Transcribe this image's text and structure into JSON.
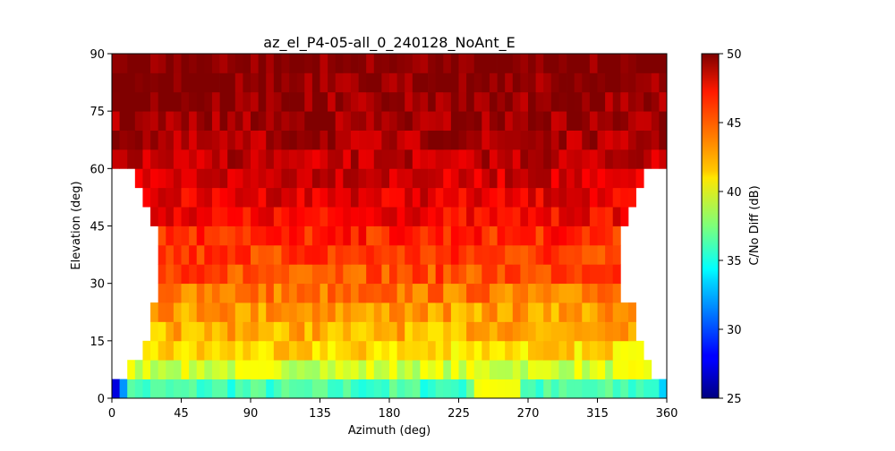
{
  "chart_data": {
    "type": "heatmap",
    "title": "az_el_P4-05-all_0_240128_NoAnt_E",
    "xlabel": "Azimuth (deg)",
    "ylabel": "Elevation (deg)",
    "xlim": [
      0,
      360
    ],
    "ylim": [
      0,
      90
    ],
    "xticks": [
      "0",
      "45",
      "90",
      "135",
      "180",
      "225",
      "270",
      "315",
      "360"
    ],
    "yticks": [
      "0",
      "15",
      "30",
      "45",
      "60",
      "75",
      "90"
    ],
    "bin_az_deg": 5,
    "bin_el_deg": 5,
    "colormap": "jet",
    "colorbar": {
      "label": "C/No Diff (dB)",
      "range": [
        25,
        50
      ],
      "ticks": [
        "25",
        "30",
        "35",
        "40",
        "45",
        "50"
      ]
    },
    "rows": [
      {
        "el": [
          0,
          5
        ],
        "az": [
          0,
          360
        ],
        "approx": 36,
        "notes": "az 0-5: 27 (blue); az 5-10: 32 (light blue); az 235-265: 40-41 (yellow-green); az 355-360: 33 (light blue)"
      },
      {
        "el": [
          5,
          10
        ],
        "az": [
          10,
          350
        ],
        "approx": 39.5
      },
      {
        "el": [
          10,
          15
        ],
        "az": [
          20,
          345
        ],
        "approx": 41.5
      },
      {
        "el": [
          15,
          20
        ],
        "az": [
          25,
          340
        ],
        "approx": 42.5
      },
      {
        "el": [
          20,
          25
        ],
        "az": [
          25,
          340
        ],
        "approx": 43
      },
      {
        "el": [
          25,
          30
        ],
        "az": [
          30,
          330
        ],
        "approx": 44
      },
      {
        "el": [
          30,
          35
        ],
        "az": [
          30,
          330
        ],
        "approx": 45
      },
      {
        "el": [
          35,
          40
        ],
        "az": [
          30,
          330
        ],
        "approx": 45.5
      },
      {
        "el": [
          40,
          45
        ],
        "az": [
          30,
          330
        ],
        "approx": 46
      },
      {
        "el": [
          45,
          50
        ],
        "az": [
          25,
          335
        ],
        "approx": 47
      },
      {
        "el": [
          50,
          55
        ],
        "az": [
          20,
          340
        ],
        "approx": 47.5
      },
      {
        "el": [
          55,
          60
        ],
        "az": [
          15,
          345
        ],
        "approx": 48
      },
      {
        "el": [
          60,
          65
        ],
        "az": [
          0,
          360
        ],
        "approx": 48.5
      },
      {
        "el": [
          65,
          70
        ],
        "az": [
          0,
          360
        ],
        "approx": 49
      },
      {
        "el": [
          70,
          75
        ],
        "az": [
          0,
          360
        ],
        "approx": 49.3
      },
      {
        "el": [
          75,
          80
        ],
        "az": [
          0,
          360
        ],
        "approx": 49.5
      },
      {
        "el": [
          80,
          85
        ],
        "az": [
          0,
          360
        ],
        "approx": 49.7
      },
      {
        "el": [
          85,
          90
        ],
        "az": [
          0,
          360
        ],
        "approx": 49.9
      }
    ]
  }
}
